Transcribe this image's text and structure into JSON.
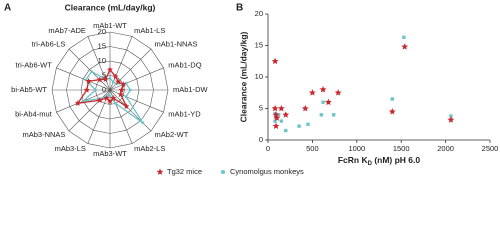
{
  "chart_data": [
    {
      "type": "radar",
      "panel": "A",
      "title": "Clearance (mL/day/kg)",
      "categories": [
        "mAb1-WT",
        "mAb1-LS",
        "mAb1-NNAS",
        "mAb1-DQ",
        "mAb1-DW",
        "mAb1-YD",
        "mAb2-WT",
        "mAb2-LS",
        "mAb3-WT",
        "mAb3-LS",
        "mAb3-NNAS",
        "bi-Ab4-mut",
        "bi-Ab5-WT",
        "tri-Ab6-WT",
        "tri-Ab6-LS",
        "mAb7-ADE"
      ],
      "series": [
        {
          "color": "#c8282e",
          "marker": "star",
          "values": [
            7,
            5,
            4,
            5,
            4,
            4,
            8,
            3,
            4,
            3,
            5,
            12,
            8,
            8,
            5,
            4
          ]
        },
        {
          "color": "#6cc3c9",
          "marker": "square",
          "values": [
            4,
            3,
            3,
            6,
            7,
            6,
            16,
            5,
            2,
            2,
            4,
            10,
            5,
            9,
            9,
            4
          ]
        }
      ],
      "rlim": [
        0,
        20
      ],
      "rticks": [
        0,
        5,
        10,
        15,
        20
      ],
      "grid": true
    },
    {
      "type": "scatter",
      "panel": "B",
      "x_label": {
        "main": "FcRn K",
        "sub": "D",
        "rest": " (nM) pH 6.0"
      },
      "y_label": "Clearance (mL/day/kg)",
      "series": [
        {
          "name": "Tg32 mice",
          "color": "#c8282e",
          "marker": "star",
          "x": [
            80,
            80,
            90,
            100,
            150,
            200,
            420,
            500,
            620,
            680,
            790,
            1400,
            1540,
            2060,
            90
          ],
          "values": [
            12.5,
            5,
            4,
            3.5,
            5,
            4,
            5,
            7.5,
            8,
            6,
            7.5,
            4.5,
            14.8,
            3.2,
            2.2
          ]
        },
        {
          "name": "Cynomolgus monkeys",
          "color": "#6cc3c9",
          "marker": "square",
          "x": [
            80,
            90,
            120,
            150,
            200,
            350,
            450,
            600,
            620,
            740,
            1400,
            1530,
            2060,
            80
          ],
          "values": [
            3,
            3.6,
            4,
            3,
            1.5,
            2.2,
            2.5,
            4,
            6,
            4,
            6.5,
            16.3,
            3.8,
            4.2
          ]
        }
      ],
      "xlim": [
        0,
        2500
      ],
      "xticks": [
        0,
        500,
        1000,
        1500,
        2000,
        2500
      ],
      "ylim": [
        0,
        20
      ],
      "yticks": [
        0,
        5,
        10,
        15,
        20
      ]
    }
  ]
}
